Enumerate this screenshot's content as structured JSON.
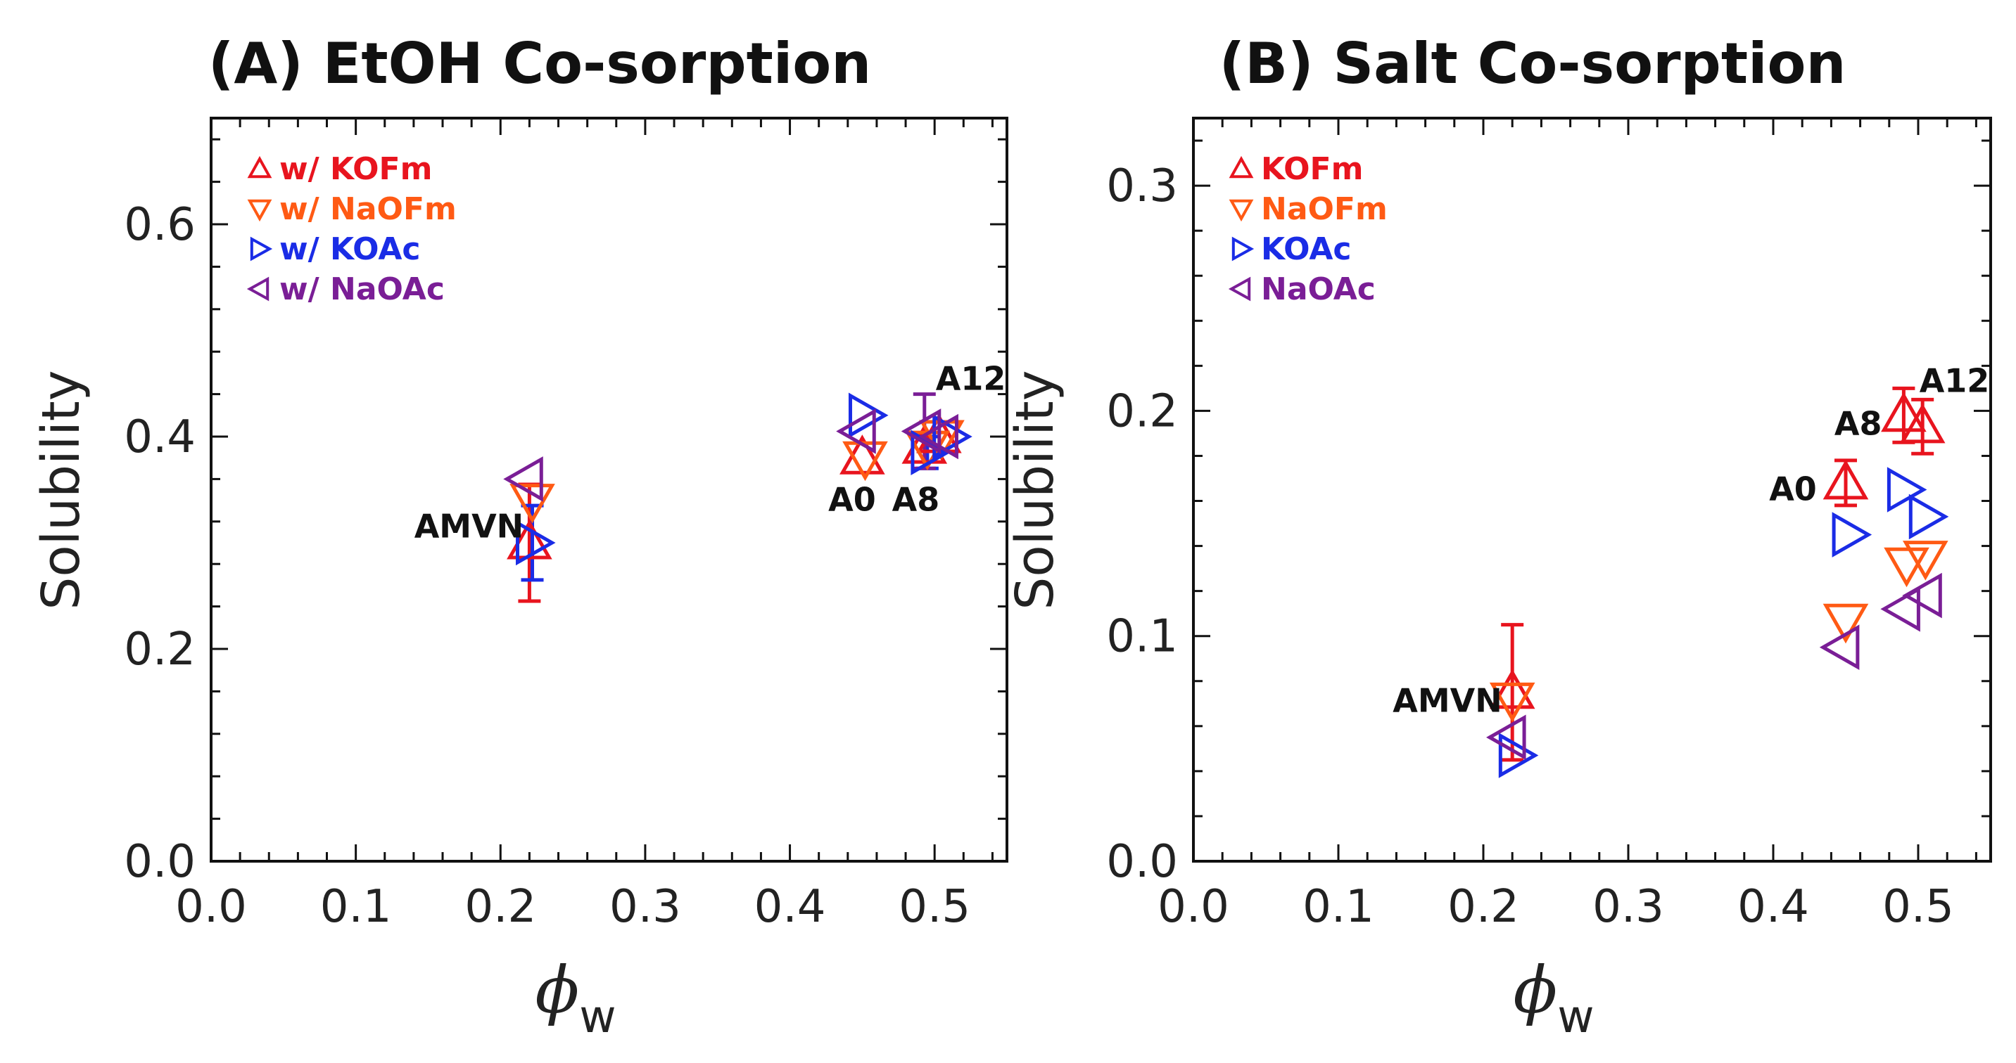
{
  "chart_data": [
    {
      "type": "scatter",
      "panel": "A",
      "title": "(A) EtOH Co-sorption",
      "xlabel": "ϕ",
      "xlabel_sub": "w",
      "ylabel": "Solubility",
      "xlim": [
        0.0,
        0.55
      ],
      "ylim": [
        0.0,
        0.7
      ],
      "xticks": [
        0.0,
        0.1,
        0.2,
        0.3,
        0.4,
        0.5
      ],
      "xtick_labels": [
        "0.0",
        "0.1",
        "0.2",
        "0.3",
        "0.4",
        "0.5"
      ],
      "yticks": [
        0.0,
        0.2,
        0.4,
        0.6
      ],
      "ytick_labels": [
        "0.0",
        "0.2",
        "0.4",
        "0.6"
      ],
      "legend_position": "top-left",
      "series": [
        {
          "name": "w/ KOFm",
          "marker": "triangle-up",
          "color": "#e8141e",
          "points": [
            {
              "x": 0.22,
              "y": 0.3,
              "err": 0.055
            },
            {
              "x": 0.45,
              "y": 0.38
            },
            {
              "x": 0.493,
              "y": 0.39
            },
            {
              "x": 0.503,
              "y": 0.4
            }
          ]
        },
        {
          "name": "w/ NaOFm",
          "marker": "triangle-down",
          "color": "#ff5a14",
          "points": [
            {
              "x": 0.222,
              "y": 0.34
            },
            {
              "x": 0.452,
              "y": 0.38
            },
            {
              "x": 0.495,
              "y": 0.39
            },
            {
              "x": 0.505,
              "y": 0.4
            }
          ]
        },
        {
          "name": "w/ KOAc",
          "marker": "triangle-right",
          "color": "#1a2ce6",
          "points": [
            {
              "x": 0.222,
              "y": 0.3,
              "err": 0.035
            },
            {
              "x": 0.452,
              "y": 0.42
            },
            {
              "x": 0.495,
              "y": 0.385,
              "err": 0.015
            },
            {
              "x": 0.51,
              "y": 0.4
            }
          ]
        },
        {
          "name": "w/ NaOAc",
          "marker": "triangle-left",
          "color": "#7a1e96",
          "points": [
            {
              "x": 0.218,
              "y": 0.36
            },
            {
              "x": 0.448,
              "y": 0.405
            },
            {
              "x": 0.493,
              "y": 0.405,
              "err": 0.035
            },
            {
              "x": 0.505,
              "y": 0.4
            }
          ]
        }
      ],
      "annotations": [
        {
          "text": "AMVN",
          "x": 0.216,
          "y": 0.317,
          "anchor": "end"
        },
        {
          "text": "A0",
          "x": 0.443,
          "y": 0.342,
          "anchor": "middle"
        },
        {
          "text": "A8",
          "x": 0.487,
          "y": 0.342,
          "anchor": "middle"
        },
        {
          "text": "A12",
          "x": 0.525,
          "y": 0.456,
          "anchor": "middle"
        }
      ]
    },
    {
      "type": "scatter",
      "panel": "B",
      "title": "(B) Salt Co-sorption",
      "xlabel": "ϕ",
      "xlabel_sub": "w",
      "ylabel": "Solubility",
      "xlim": [
        0.0,
        0.55
      ],
      "ylim": [
        0.0,
        0.33
      ],
      "xticks": [
        0.0,
        0.1,
        0.2,
        0.3,
        0.4,
        0.5
      ],
      "xtick_labels": [
        "0.0",
        "0.1",
        "0.2",
        "0.3",
        "0.4",
        "0.5"
      ],
      "yticks": [
        0.0,
        0.1,
        0.2,
        0.3
      ],
      "ytick_labels": [
        "0.0",
        "0.1",
        "0.2",
        "0.3"
      ],
      "legend_position": "top-left",
      "series": [
        {
          "name": "KOFm",
          "marker": "triangle-up",
          "color": "#e8141e",
          "points": [
            {
              "x": 0.22,
              "y": 0.075,
              "err": 0.03
            },
            {
              "x": 0.45,
              "y": 0.168,
              "err": 0.01
            },
            {
              "x": 0.49,
              "y": 0.198,
              "err": 0.012
            },
            {
              "x": 0.503,
              "y": 0.193,
              "err": 0.012
            }
          ]
        },
        {
          "name": "NaOFm",
          "marker": "triangle-down",
          "color": "#ff5a14",
          "points": [
            {
              "x": 0.22,
              "y": 0.072
            },
            {
              "x": 0.45,
              "y": 0.107
            },
            {
              "x": 0.492,
              "y": 0.132
            },
            {
              "x": 0.505,
              "y": 0.135
            }
          ]
        },
        {
          "name": "KOAc",
          "marker": "triangle-right",
          "color": "#1a2ce6",
          "points": [
            {
              "x": 0.222,
              "y": 0.047
            },
            {
              "x": 0.452,
              "y": 0.145
            },
            {
              "x": 0.49,
              "y": 0.165
            },
            {
              "x": 0.505,
              "y": 0.153
            }
          ]
        },
        {
          "name": "NaOAc",
          "marker": "triangle-left",
          "color": "#7a1e96",
          "points": [
            {
              "x": 0.218,
              "y": 0.055
            },
            {
              "x": 0.448,
              "y": 0.095
            },
            {
              "x": 0.49,
              "y": 0.112
            },
            {
              "x": 0.505,
              "y": 0.118
            }
          ]
        }
      ],
      "annotations": [
        {
          "text": "AMVN",
          "x": 0.213,
          "y": 0.072,
          "anchor": "end"
        },
        {
          "text": "A0",
          "x": 0.43,
          "y": 0.166,
          "anchor": "end"
        },
        {
          "text": "A8",
          "x": 0.475,
          "y": 0.195,
          "anchor": "end"
        },
        {
          "text": "A12",
          "x": 0.525,
          "y": 0.214,
          "anchor": "middle"
        }
      ]
    }
  ]
}
